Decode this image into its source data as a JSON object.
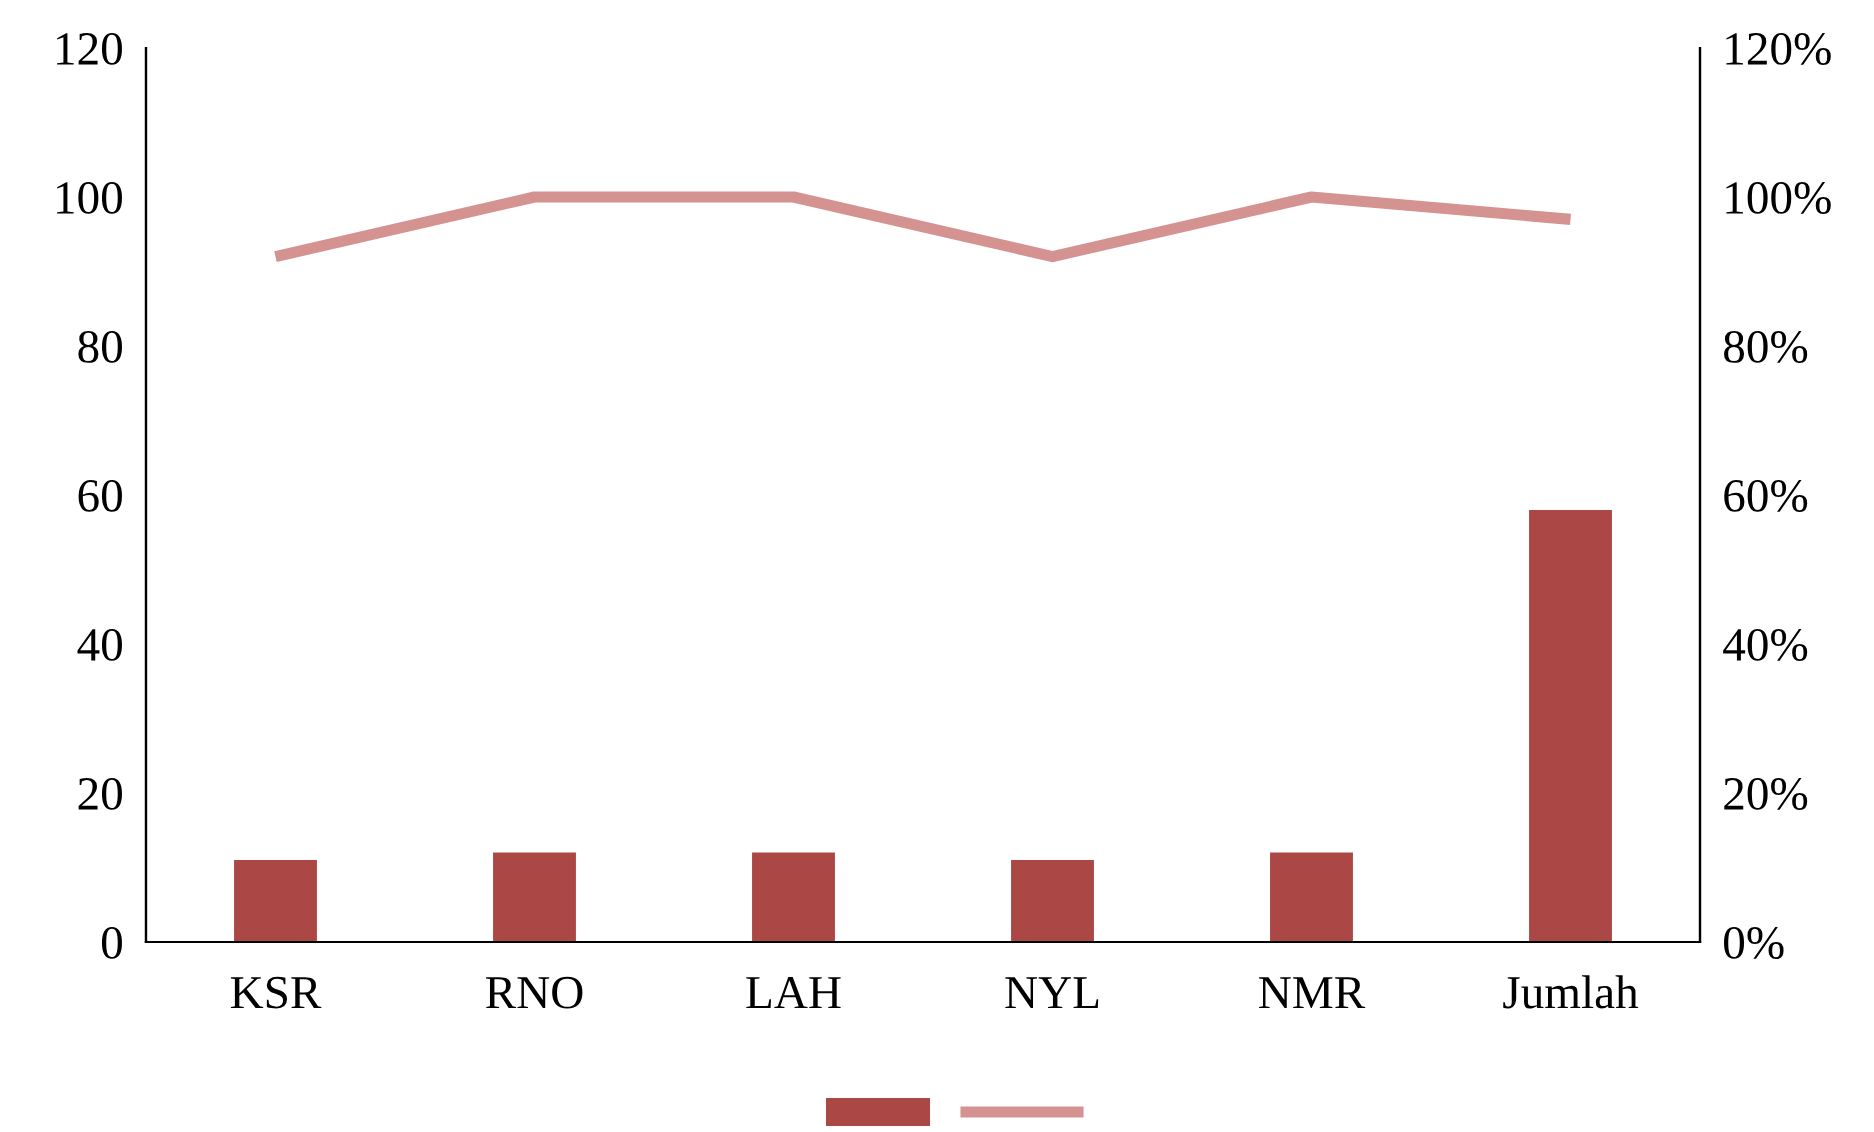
{
  "chart_data": {
    "type": "bar",
    "categories": [
      "KSR",
      "RNO",
      "LAH",
      "NYL",
      "NMR",
      "Jumlah"
    ],
    "series": [
      {
        "color": "#ab4744",
        "values": [
          11,
          12,
          12,
          11,
          12,
          58
        ]
      },
      {
        "type": "line",
        "axis": "y2",
        "color": "#d49391",
        "values": [
          0.92,
          1.0,
          1.0,
          0.92,
          1.0,
          0.97
        ],
        "marker": "none",
        "line_style": "solid"
      }
    ],
    "ylim": [
      0,
      120
    ],
    "yticks": [
      0,
      20,
      40,
      60,
      80,
      100,
      120
    ],
    "y2lim": [
      0,
      1.2
    ],
    "y2ticks": [
      {
        "value": 0,
        "label": "0%"
      },
      {
        "value": 0.2,
        "label": "20%"
      },
      {
        "value": 0.4,
        "label": "40%"
      },
      {
        "value": 0.6,
        "label": "60%"
      },
      {
        "value": 0.8,
        "label": "80%"
      },
      {
        "value": 1.0,
        "label": "100%"
      },
      {
        "value": 1.2,
        "label": "120%"
      }
    ],
    "grid": false
  }
}
